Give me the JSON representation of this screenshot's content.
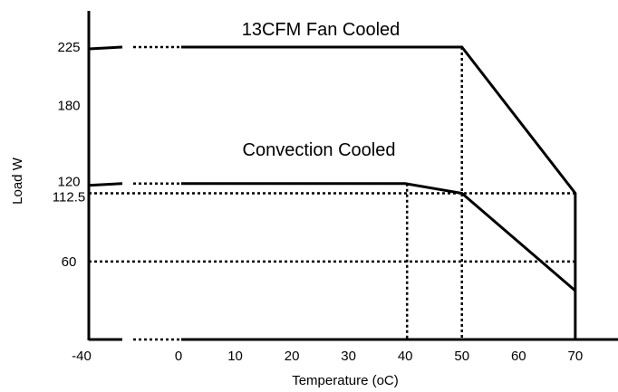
{
  "chart_data": {
    "type": "line",
    "xlabel": "Temperature (oC)",
    "ylabel": "Load W",
    "x_ticks": [
      "-40",
      "0",
      "10",
      "20",
      "30",
      "40",
      "50",
      "60",
      "70"
    ],
    "y_ticks": [
      "225",
      "180",
      "120",
      "112.5",
      "60"
    ],
    "series": [
      {
        "name": "13CFM Fan Cooled",
        "x": [
          -40,
          50,
          70,
          70
        ],
        "y": [
          225,
          225,
          112.5,
          0
        ]
      },
      {
        "name": "Convection Cooled",
        "x": [
          -40,
          40,
          50,
          70
        ],
        "y": [
          120,
          120,
          112.5,
          37.5
        ]
      }
    ],
    "reference_lines": [
      {
        "axis": "y",
        "value": 112.5,
        "to_x": 70
      },
      {
        "axis": "y",
        "value": 60,
        "to_x": 70
      },
      {
        "axis": "x",
        "value": 40,
        "from_y": 0,
        "to_y": 120
      },
      {
        "axis": "x",
        "value": 50,
        "from_y": 0,
        "to_y": 225
      }
    ],
    "axis_break": {
      "from": -40,
      "to": 0
    },
    "xlim": [
      -40,
      70
    ],
    "ylim": [
      0,
      225
    ]
  }
}
